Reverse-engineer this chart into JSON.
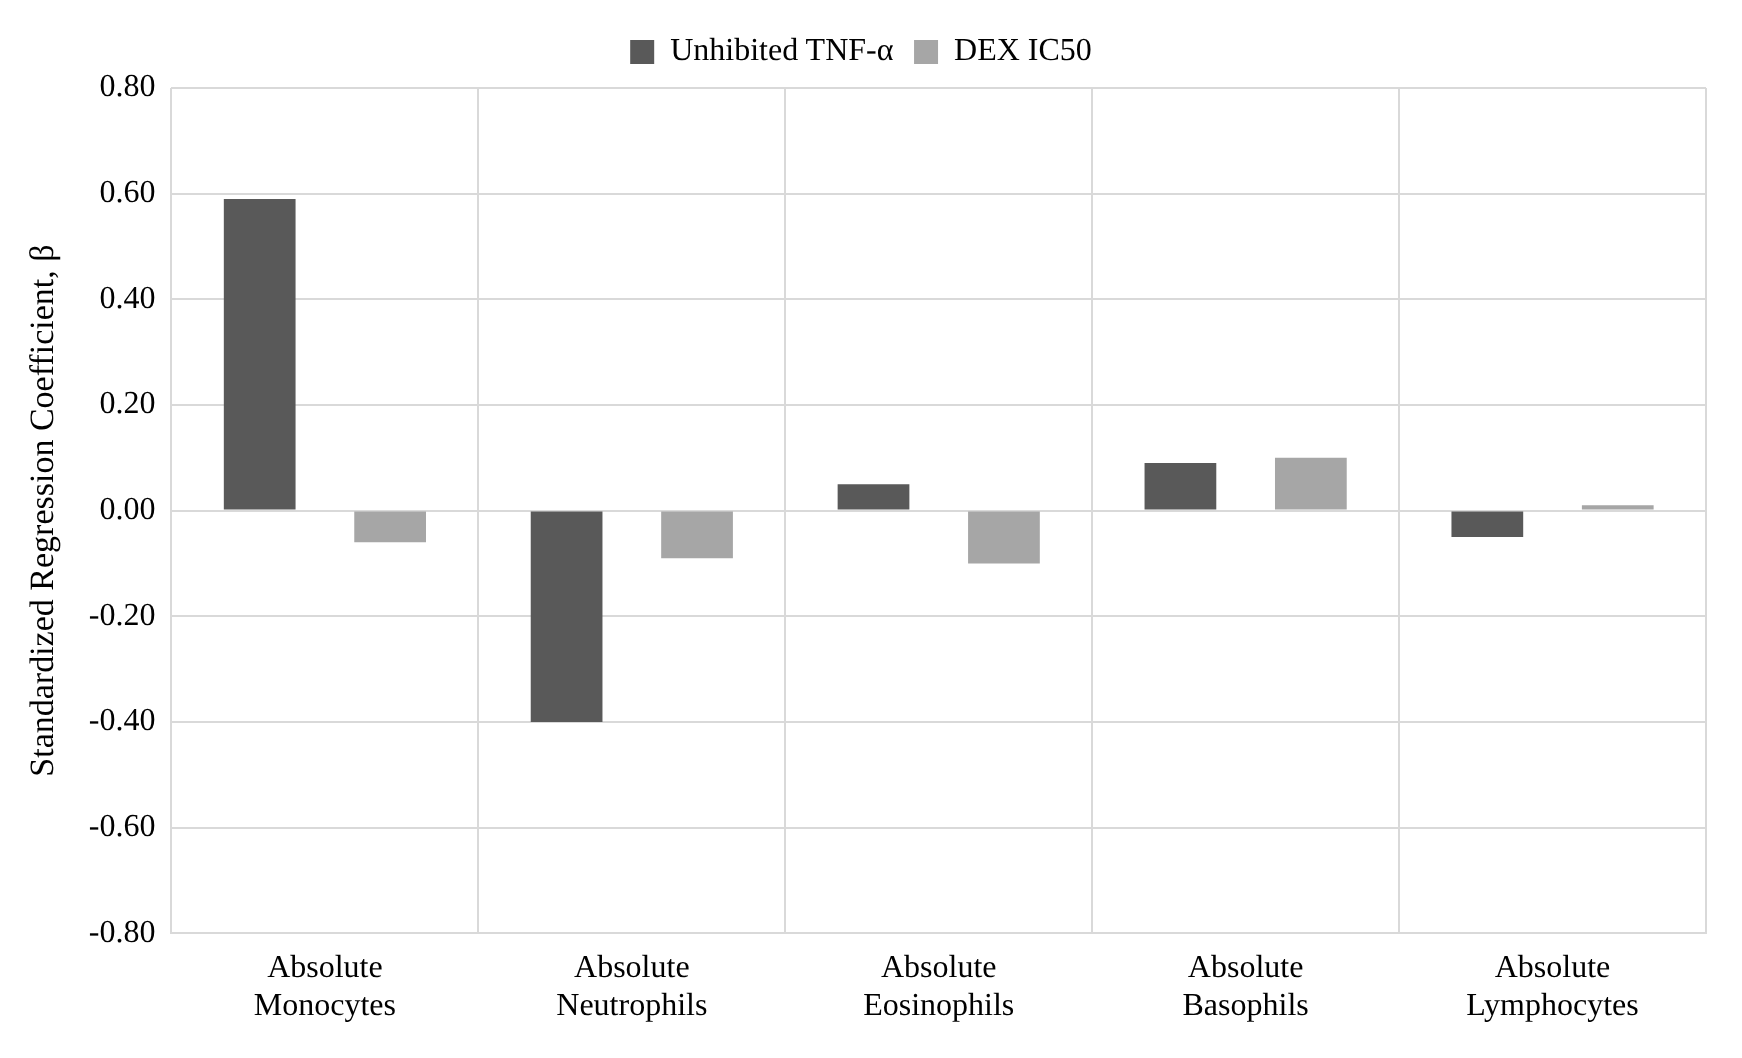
{
  "chart_data": {
    "type": "bar",
    "ylabel": "Standardized Regression Coefficient, β",
    "categories": [
      "Absolute Monocytes",
      "Absolute Neutrophils",
      "Absolute Eosinophils",
      "Absolute Basophils",
      "Absolute Lymphocytes"
    ],
    "series": [
      {
        "name": "Unhibited TNF-α",
        "color": "#595959",
        "values": [
          0.59,
          -0.4,
          0.05,
          0.09,
          -0.05
        ]
      },
      {
        "name": "DEX IC50",
        "color": "#a6a6a6",
        "values": [
          -0.06,
          -0.09,
          -0.1,
          0.1,
          0.01
        ]
      }
    ],
    "ylim": [
      -0.8,
      0.8
    ],
    "yticks": [
      {
        "value": -0.8,
        "label": "-0.80"
      },
      {
        "value": -0.6,
        "label": "-0.60"
      },
      {
        "value": -0.4,
        "label": "-0.40"
      },
      {
        "value": -0.2,
        "label": "-0.20"
      },
      {
        "value": 0,
        "label": "0.00"
      },
      {
        "value": 0.2,
        "label": "0.20"
      },
      {
        "value": 0.4,
        "label": "0.40"
      },
      {
        "value": 0.6,
        "label": "0.60"
      },
      {
        "value": 0.8,
        "label": "0.80"
      }
    ],
    "grid": true,
    "legend": "top"
  }
}
